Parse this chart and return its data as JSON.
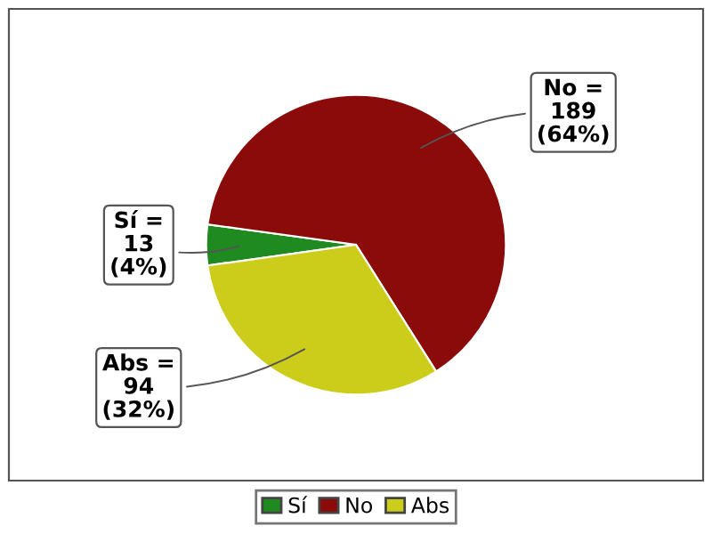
{
  "chart_data": {
    "type": "pie",
    "categories": [
      "Sí",
      "No",
      "Abs"
    ],
    "values": [
      13,
      189,
      94
    ],
    "colors": [
      "#1f8a1f",
      "#8b0a0a",
      "#cccc1a"
    ],
    "value_labels": [
      "Sí =\n13\n(4%)",
      "No =\n189\n(64%)",
      "Abs =\n94\n(32%)"
    ],
    "legend": "bottom"
  }
}
